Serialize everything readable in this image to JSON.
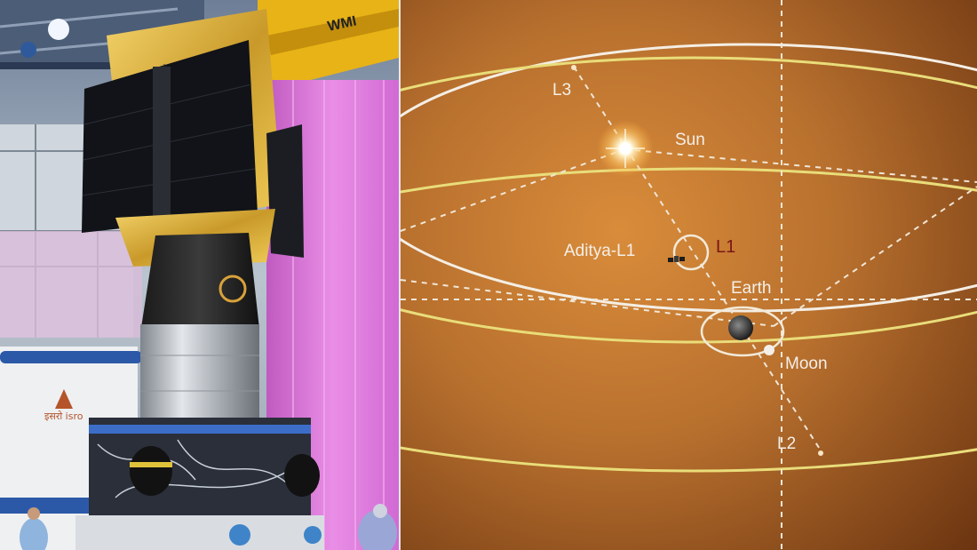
{
  "left_photo": {
    "logo_text": "इसरो isro"
  },
  "diagram": {
    "labels": {
      "l3": "L3",
      "sun": "Sun",
      "aditya": "Aditya-L1",
      "l1": "L1",
      "earth": "Earth",
      "moon": "Moon",
      "l2": "L2"
    },
    "colors": {
      "background": "#b8702e",
      "orbit": "#e9dd7a",
      "l1_label": "#7a1616",
      "text": "#f4efe8"
    }
  }
}
